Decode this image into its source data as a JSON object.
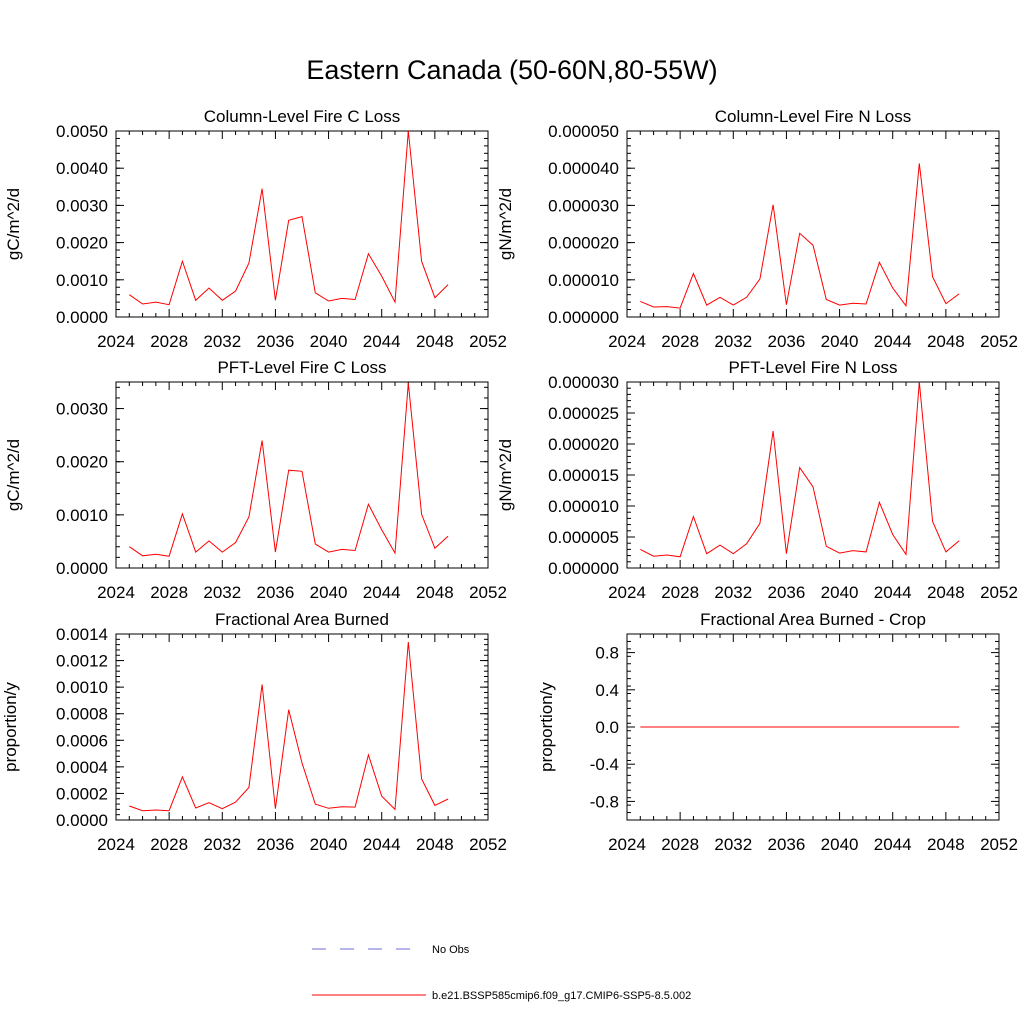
{
  "title": "Eastern Canada (50-60N,80-55W)",
  "colors": {
    "model_line": "#ff0000",
    "obs_line": "#6b6bd6",
    "axis": "#000000"
  },
  "legend": {
    "obs_label": "No Obs",
    "model_label": "b.e21.BSSP585cmip6.f09_g17.CMIP6-SSP5-8.5.002"
  },
  "chart_data": [
    {
      "type": "line",
      "title": "Column-Level Fire C Loss",
      "ylabel": "gC/m^2/d",
      "xlim": [
        2024,
        2052
      ],
      "xticks": [
        2024,
        2028,
        2032,
        2036,
        2040,
        2044,
        2048,
        2052
      ],
      "ylim": [
        0,
        0.005
      ],
      "yticks": [
        "0.0000",
        "0.0010",
        "0.0020",
        "0.0030",
        "0.0040",
        "0.0050"
      ],
      "x": [
        2025,
        2026,
        2027,
        2028,
        2029,
        2030,
        2031,
        2032,
        2033,
        2034,
        2035,
        2036,
        2037,
        2038,
        2039,
        2040,
        2041,
        2042,
        2043,
        2044,
        2045,
        2046,
        2047,
        2048,
        2049
      ],
      "series": [
        {
          "values": [
            0.0006,
            0.00035,
            0.0004,
            0.00033,
            0.0015,
            0.00045,
            0.00078,
            0.00045,
            0.0007,
            0.00145,
            0.00345,
            0.00045,
            0.0026,
            0.0027,
            0.00065,
            0.00043,
            0.0005,
            0.00047,
            0.0017,
            0.0011,
            0.0004,
            0.005,
            0.0015,
            0.00052,
            0.00087
          ]
        }
      ]
    },
    {
      "type": "line",
      "title": "Column-Level Fire N Loss",
      "ylabel": "gN/m^2/d",
      "xlim": [
        2024,
        2052
      ],
      "xticks": [
        2024,
        2028,
        2032,
        2036,
        2040,
        2044,
        2048,
        2052
      ],
      "ylim": [
        0,
        5e-05
      ],
      "yticks": [
        "0.000000",
        "0.000010",
        "0.000020",
        "0.000030",
        "0.000040",
        "0.000050"
      ],
      "x": [
        2025,
        2026,
        2027,
        2028,
        2029,
        2030,
        2031,
        2032,
        2033,
        2034,
        2035,
        2036,
        2037,
        2038,
        2039,
        2040,
        2041,
        2042,
        2043,
        2044,
        2045,
        2046,
        2047,
        2048,
        2049
      ],
      "series": [
        {
          "values": [
            4.2e-06,
            2.7e-06,
            2.8e-06,
            2.4e-06,
            1.17e-05,
            3.2e-06,
            5.3e-06,
            3.2e-06,
            5.3e-06,
            1.02e-05,
            3.02e-05,
            3.3e-06,
            2.25e-05,
            1.93e-05,
            4.7e-06,
            3.2e-06,
            3.7e-06,
            3.5e-06,
            1.47e-05,
            7.8e-06,
            3e-06,
            4.13e-05,
            1.08e-05,
            3.6e-06,
            6.2e-06
          ]
        }
      ]
    },
    {
      "type": "line",
      "title": "PFT-Level Fire C Loss",
      "ylabel": "gC/m^2/d",
      "xlim": [
        2024,
        2052
      ],
      "xticks": [
        2024,
        2028,
        2032,
        2036,
        2040,
        2044,
        2048,
        2052
      ],
      "ylim": [
        0,
        0.0035
      ],
      "yticks": [
        "0.0000",
        "0.0010",
        "0.0020",
        "0.0030"
      ],
      "ytick_values": [
        0,
        0.001,
        0.002,
        0.003
      ],
      "x": [
        2025,
        2026,
        2027,
        2028,
        2029,
        2030,
        2031,
        2032,
        2033,
        2034,
        2035,
        2036,
        2037,
        2038,
        2039,
        2040,
        2041,
        2042,
        2043,
        2044,
        2045,
        2046,
        2047,
        2048,
        2049
      ],
      "series": [
        {
          "values": [
            0.0004,
            0.00023,
            0.00026,
            0.00022,
            0.00102,
            0.0003,
            0.00051,
            0.0003,
            0.00048,
            0.00096,
            0.0024,
            0.0003,
            0.00184,
            0.00182,
            0.00045,
            0.0003,
            0.00035,
            0.00033,
            0.0012,
            0.00072,
            0.00028,
            0.00348,
            0.00101,
            0.00037,
            0.0006
          ]
        }
      ]
    },
    {
      "type": "line",
      "title": "PFT-Level Fire N Loss",
      "ylabel": "gN/m^2/d",
      "xlim": [
        2024,
        2052
      ],
      "xticks": [
        2024,
        2028,
        2032,
        2036,
        2040,
        2044,
        2048,
        2052
      ],
      "ylim": [
        0,
        3e-05
      ],
      "yticks": [
        "0.000000",
        "0.000005",
        "0.000010",
        "0.000015",
        "0.000020",
        "0.000025",
        "0.000030"
      ],
      "x": [
        2025,
        2026,
        2027,
        2028,
        2029,
        2030,
        2031,
        2032,
        2033,
        2034,
        2035,
        2036,
        2037,
        2038,
        2039,
        2040,
        2041,
        2042,
        2043,
        2044,
        2045,
        2046,
        2047,
        2048,
        2049
      ],
      "series": [
        {
          "values": [
            3e-06,
            1.9e-06,
            2.1e-06,
            1.8e-06,
            8.3e-06,
            2.3e-06,
            3.7e-06,
            2.3e-06,
            3.9e-06,
            7.2e-06,
            2.21e-05,
            2.3e-06,
            1.62e-05,
            1.31e-05,
            3.5e-06,
            2.4e-06,
            2.8e-06,
            2.6e-06,
            1.06e-05,
            5.4e-06,
            2.2e-06,
            3e-05,
            7.5e-06,
            2.6e-06,
            4.4e-06
          ]
        }
      ]
    },
    {
      "type": "line",
      "title": "Fractional Area Burned",
      "ylabel": "proportion/y",
      "xlim": [
        2024,
        2052
      ],
      "xticks": [
        2024,
        2028,
        2032,
        2036,
        2040,
        2044,
        2048,
        2052
      ],
      "ylim": [
        0,
        0.0014
      ],
      "yticks": [
        "0.0000",
        "0.0002",
        "0.0004",
        "0.0006",
        "0.0008",
        "0.0010",
        "0.0012",
        "0.0014"
      ],
      "x": [
        2025,
        2026,
        2027,
        2028,
        2029,
        2030,
        2031,
        2032,
        2033,
        2034,
        2035,
        2036,
        2037,
        2038,
        2039,
        2040,
        2041,
        2042,
        2043,
        2044,
        2045,
        2046,
        2047,
        2048,
        2049
      ],
      "series": [
        {
          "values": [
            0.000105,
            7e-05,
            7.5e-05,
            7e-05,
            0.000325,
            9e-05,
            0.00013,
            8.5e-05,
            0.000135,
            0.000245,
            0.00102,
            8.5e-05,
            0.00083,
            0.00043,
            0.00012,
            8.8e-05,
            0.0001,
            9.7e-05,
            0.00049,
            0.00018,
            8e-05,
            0.00134,
            0.00031,
            0.00011,
            0.000158
          ]
        }
      ]
    },
    {
      "type": "line",
      "title": "Fractional Area Burned - Crop",
      "ylabel": "proportion/y",
      "xlim": [
        2024,
        2052
      ],
      "xticks": [
        2024,
        2028,
        2032,
        2036,
        2040,
        2044,
        2048,
        2052
      ],
      "ylim": [
        -1,
        1
      ],
      "yticks": [
        "-0.8",
        "-0.4",
        "0.0",
        "0.4",
        "0.8"
      ],
      "ytick_values": [
        -0.8,
        -0.4,
        0,
        0.4,
        0.8
      ],
      "x": [
        2025,
        2026,
        2027,
        2028,
        2029,
        2030,
        2031,
        2032,
        2033,
        2034,
        2035,
        2036,
        2037,
        2038,
        2039,
        2040,
        2041,
        2042,
        2043,
        2044,
        2045,
        2046,
        2047,
        2048,
        2049
      ],
      "series": [
        {
          "values": [
            0,
            0,
            0,
            0,
            0,
            0,
            0,
            0,
            0,
            0,
            0,
            0,
            0,
            0,
            0,
            0,
            0,
            0,
            0,
            0,
            0,
            0,
            0,
            0,
            0
          ]
        }
      ]
    }
  ]
}
